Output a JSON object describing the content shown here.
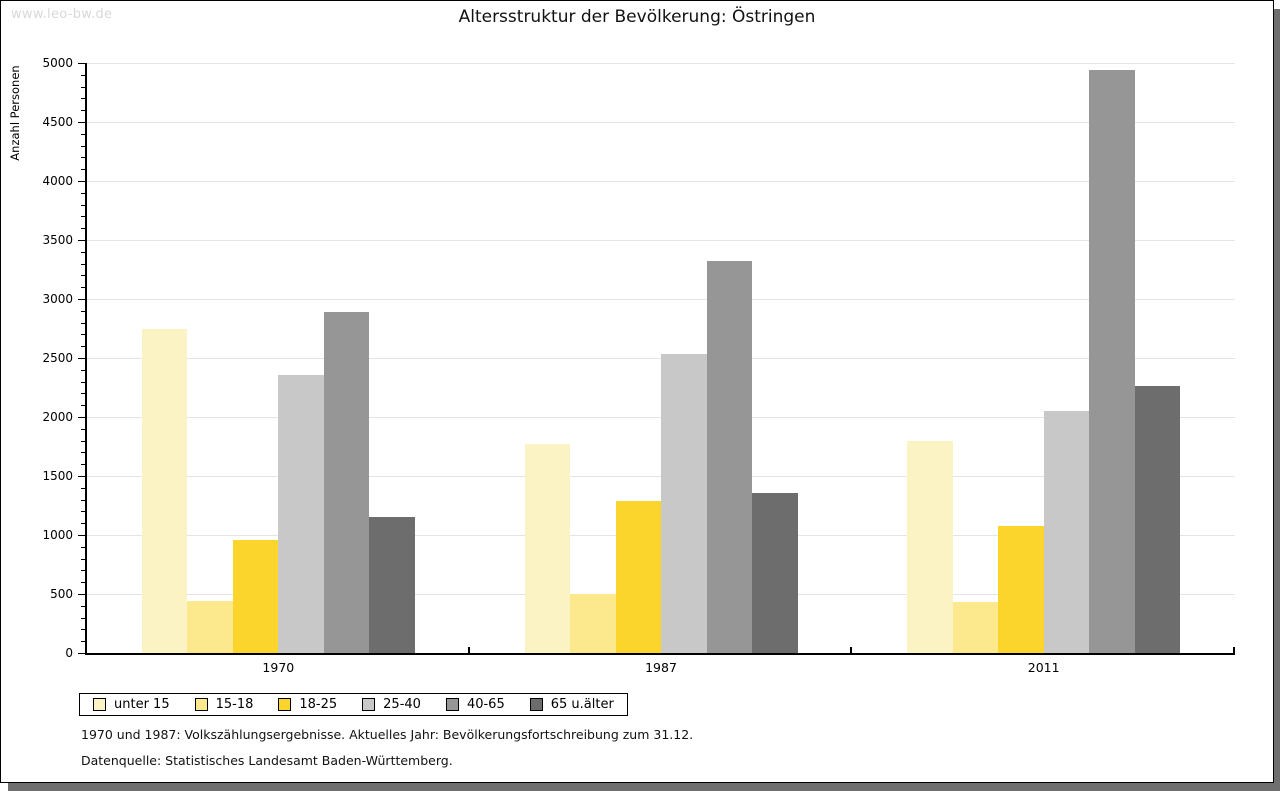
{
  "watermark": "www.leo-bw.de",
  "title": "Altersstruktur der Bevölkerung: Östringen",
  "chart_data": {
    "type": "bar",
    "title": "Altersstruktur der Bevölkerung: Östringen",
    "xlabel": "",
    "ylabel": "Anzahl Personen",
    "ylim": [
      0,
      5000
    ],
    "ytick_step": 500,
    "minor_tick_step": 100,
    "grid": true,
    "legend_position": "bottom",
    "categories": [
      "1970",
      "1987",
      "2011"
    ],
    "series": [
      {
        "name": "unter 15",
        "color": "#FBF3C3",
        "values": [
          2750,
          1770,
          1800
        ]
      },
      {
        "name": "15-18",
        "color": "#FCE88D",
        "values": [
          440,
          500,
          430
        ]
      },
      {
        "name": "18-25",
        "color": "#FBD42C",
        "values": [
          960,
          1290,
          1080
        ]
      },
      {
        "name": "25-40",
        "color": "#C8C8C8",
        "values": [
          2360,
          2530,
          2050
        ]
      },
      {
        "name": "40-65",
        "color": "#969696",
        "values": [
          2890,
          3320,
          4940
        ]
      },
      {
        "name": "65 u.älter",
        "color": "#6D6D6D",
        "values": [
          1150,
          1360,
          2260
        ]
      }
    ]
  },
  "footnotes": [
    "1970 und 1987: Volkszählungsergebnisse. Aktuelles Jahr: Bevölkerungsfortschreibung zum 31.12.",
    "Datenquelle: Statistisches Landesamt Baden-Württemberg."
  ],
  "colors": {
    "gridline": "#E4E4E4",
    "axis": "#000000",
    "shadow": "#6F6F6F",
    "watermark_text": "#D9D9D9"
  }
}
